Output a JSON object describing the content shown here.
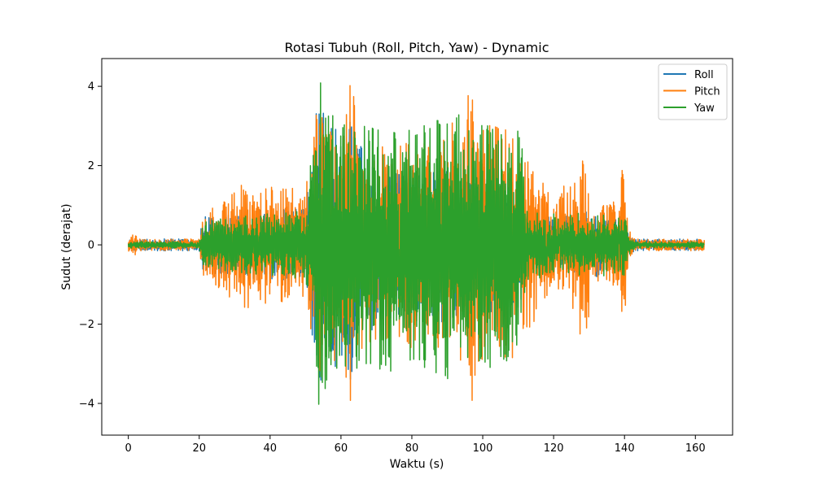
{
  "chart_data": {
    "type": "line",
    "title": "Rotasi Tubuh (Roll, Pitch, Yaw) - Dynamic",
    "xlabel": "Waktu (s)",
    "ylabel": "Sudut (derajat)",
    "xlim": [
      -7.5,
      170.5
    ],
    "ylim": [
      -4.8,
      4.7
    ],
    "xticks": [
      0,
      20,
      40,
      60,
      80,
      100,
      120,
      140,
      160
    ],
    "yticks": [
      -4,
      -2,
      0,
      2,
      4
    ],
    "ytick_labels": [
      "−4",
      "−2",
      "0",
      "2",
      "4"
    ],
    "grid": false,
    "legend_position": "top-right",
    "duration": 162.5,
    "series": [
      {
        "name": "Roll",
        "color": "#1f77b4",
        "envelope_time": [
          0,
          20,
          21,
          30,
          40,
          50,
          52,
          53,
          60,
          62,
          70,
          80,
          90,
          100,
          111,
          112,
          120,
          128,
          130,
          138,
          140,
          141,
          143,
          162.5
        ],
        "envelope_amp": [
          0.15,
          0.15,
          0.7,
          0.8,
          0.9,
          0.9,
          2.4,
          3.6,
          3.0,
          3.6,
          2.0,
          1.9,
          2.0,
          1.8,
          1.6,
          0.9,
          0.7,
          0.8,
          0.9,
          0.7,
          0.9,
          0.3,
          0.15,
          0.15
        ]
      },
      {
        "name": "Pitch",
        "color": "#ff7f0e",
        "envelope_time": [
          0,
          1,
          3,
          20,
          21,
          30,
          37,
          40,
          50,
          52,
          53,
          60,
          63,
          65,
          70,
          80,
          90,
          97,
          100,
          110,
          112,
          120,
          126,
          128,
          130,
          132,
          138,
          140,
          141,
          143,
          162.5
        ],
        "envelope_amp": [
          0.15,
          0.35,
          0.15,
          0.15,
          0.8,
          1.5,
          1.7,
          1.5,
          1.5,
          2.4,
          3.3,
          3.0,
          4.2,
          3.0,
          2.5,
          2.6,
          2.8,
          4.2,
          3.2,
          2.8,
          2.3,
          1.2,
          1.8,
          2.6,
          2.0,
          1.0,
          1.2,
          2.3,
          0.5,
          0.15,
          0.15
        ]
      },
      {
        "name": "Yaw",
        "color": "#2ca02c",
        "envelope_time": [
          0,
          20,
          21,
          30,
          40,
          50,
          52,
          53,
          60,
          70,
          80,
          90,
          100,
          110,
          111,
          112,
          120,
          140,
          141,
          143,
          162.5
        ],
        "envelope_amp": [
          0.08,
          0.08,
          0.6,
          0.7,
          0.8,
          0.9,
          2.5,
          4.3,
          3.2,
          3.2,
          3.2,
          3.4,
          3.1,
          3.1,
          3.2,
          0.9,
          0.8,
          0.8,
          0.3,
          0.08,
          0.08
        ]
      }
    ]
  }
}
